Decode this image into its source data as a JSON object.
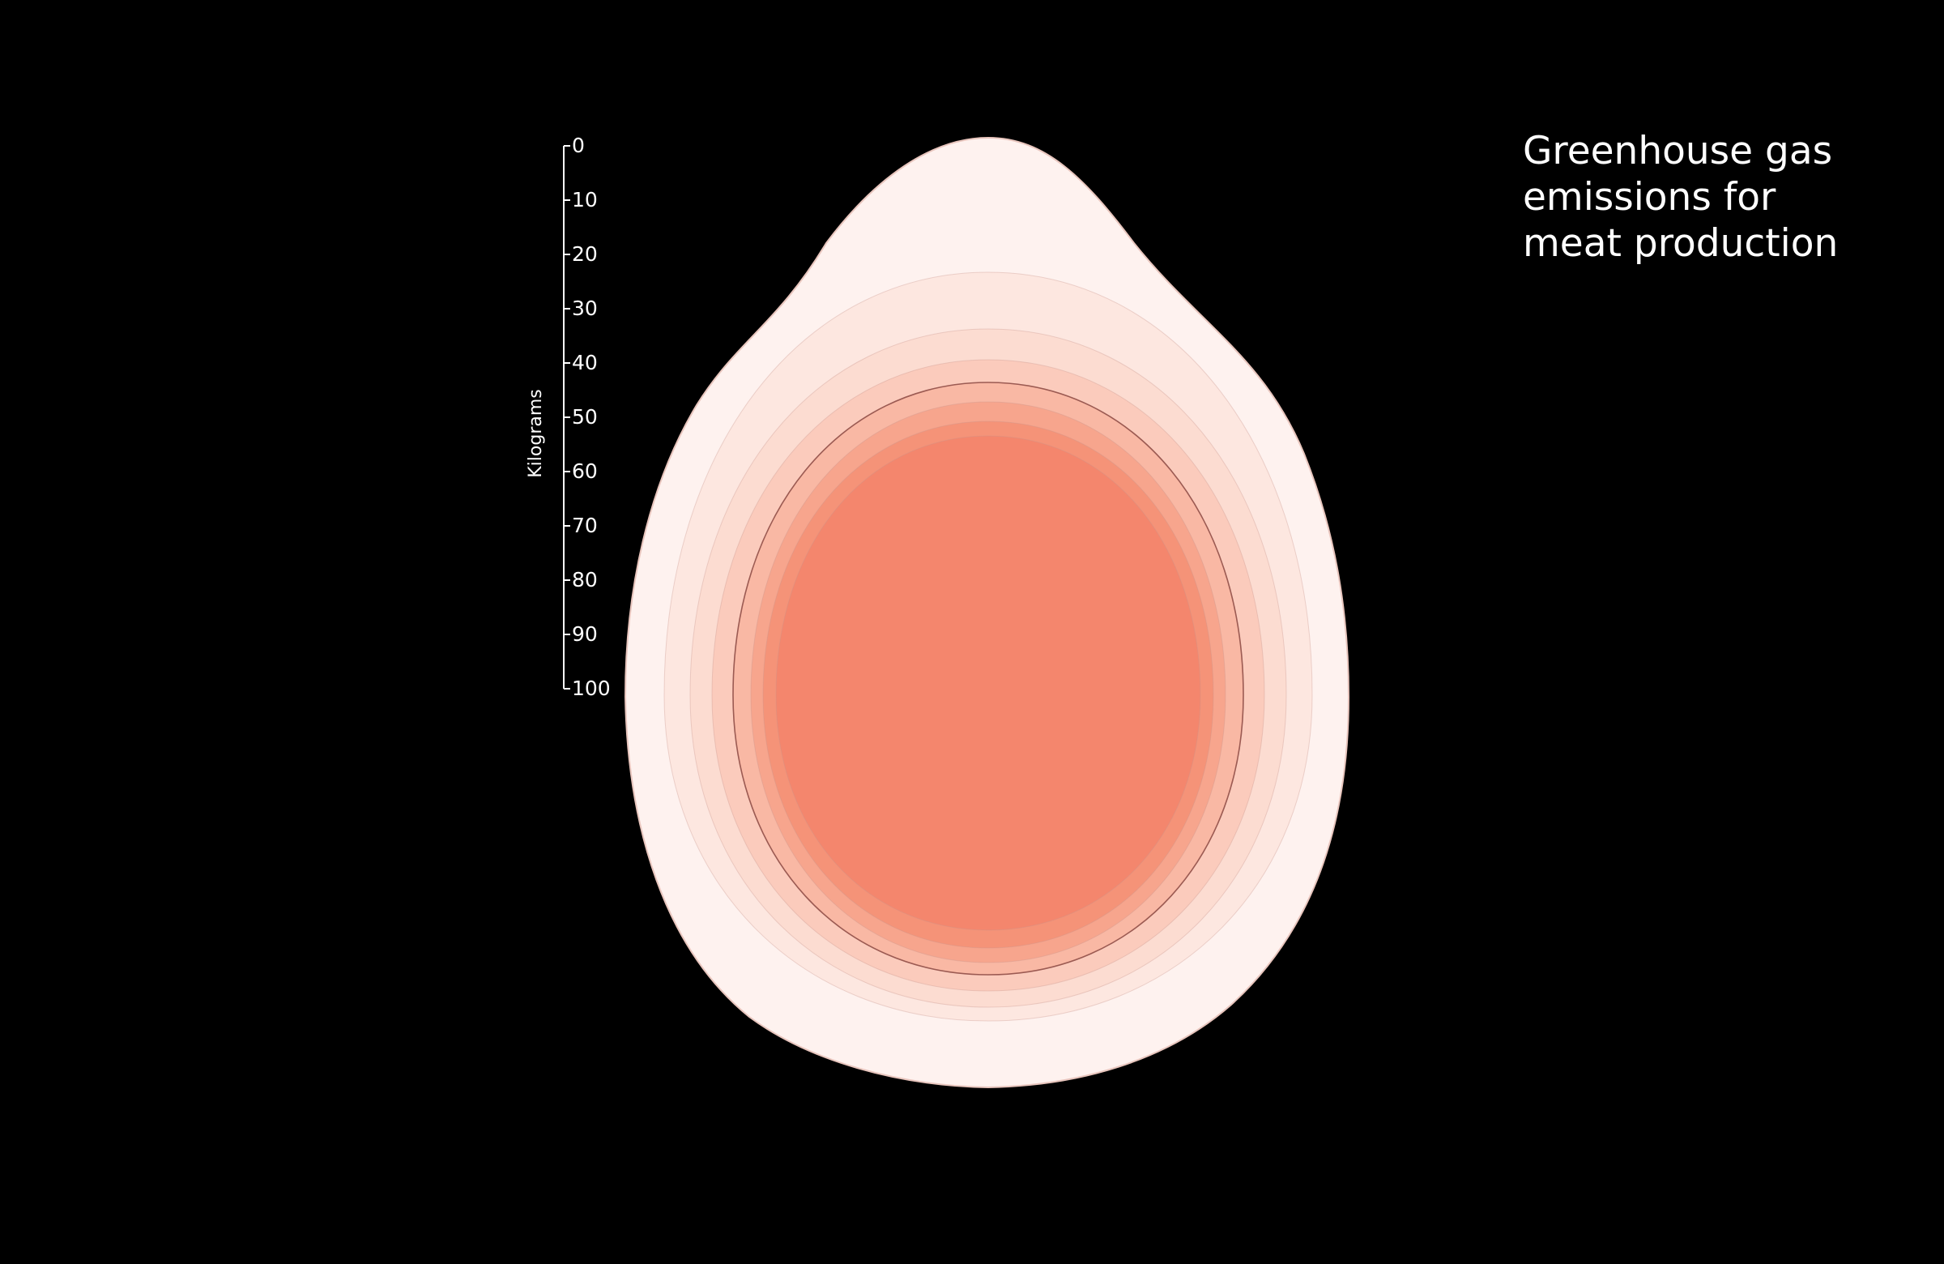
{
  "chart_data": {
    "type": "contour",
    "title_lines": [
      "Greenhouse gas",
      "emissions for",
      "meat production"
    ],
    "ylabel": "Kilograms",
    "y_ticks": [
      0,
      10,
      20,
      30,
      40,
      50,
      60,
      70,
      80,
      90,
      100
    ],
    "ylim": [
      0,
      100
    ],
    "grid": false,
    "legend": "none",
    "colors": {
      "background": "#000000",
      "text": "#ffffff",
      "levels": [
        "#fef2ef",
        "#fde7e0",
        "#fcdcd1",
        "#fbcbbc",
        "#f9b8a4",
        "#f7a58d",
        "#f59378",
        "#f4866d"
      ],
      "outline": "#e8c5bd",
      "highlight_contour": "#9b5a52"
    }
  }
}
